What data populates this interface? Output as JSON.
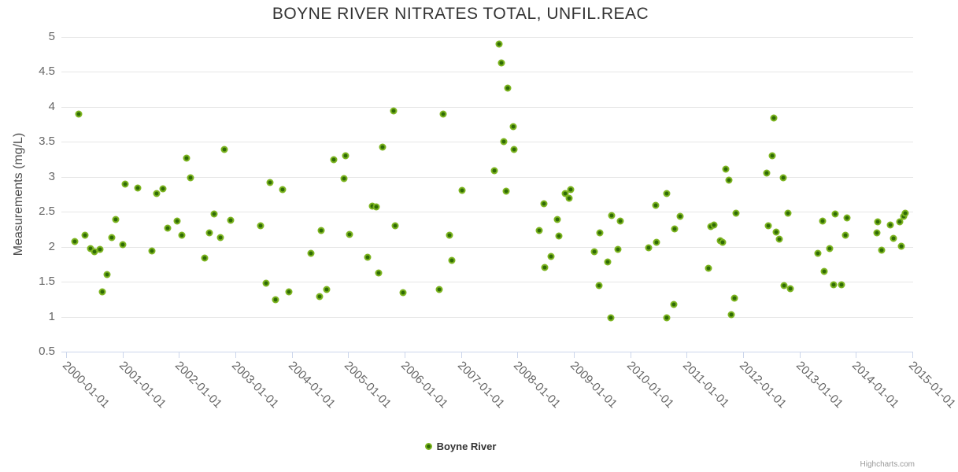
{
  "title": "BOYNE RIVER NITRATES TOTAL, UNFIL.REAC",
  "credits": "Highcharts.com",
  "colors": {
    "point_outer": "#7cb41f",
    "point_inner": "#2f6b05",
    "gridline": "#e6e6e6",
    "axis_line": "#ccd6eb",
    "title_text": "#333333",
    "axis_label_text": "#666666"
  },
  "legend": {
    "items": [
      {
        "label": "Boyne River",
        "marker": "circle-icon"
      }
    ]
  },
  "chart_data": {
    "type": "scatter",
    "title": "BOYNE RIVER NITRATES TOTAL, UNFIL.REAC",
    "xlabel": "",
    "ylabel": "Measurements (mg/L)",
    "ylim": [
      0.5,
      5
    ],
    "xlim": [
      "2000-01-01",
      "2015-01-01"
    ],
    "grid": true,
    "legend_position": "bottom-center",
    "ytick_labels": [
      "0.5",
      "1",
      "1.5",
      "2",
      "2.5",
      "3",
      "3.5",
      "4",
      "4.5",
      "5"
    ],
    "ytick_values": [
      0.5,
      1,
      1.5,
      2,
      2.5,
      3,
      3.5,
      4,
      4.5,
      5
    ],
    "xtick_labels": [
      "2000-01-01",
      "2001-01-01",
      "2002-01-01",
      "2003-01-01",
      "2004-01-01",
      "2005-01-01",
      "2006-01-01",
      "2007-01-01",
      "2008-01-01",
      "2009-01-01",
      "2010-01-01",
      "2011-01-01",
      "2012-01-01",
      "2013-01-01",
      "2014-01-01",
      "2015-01-01"
    ],
    "xtick_years": [
      2000,
      2001,
      2002,
      2003,
      2004,
      2005,
      2006,
      2007,
      2008,
      2009,
      2010,
      2011,
      2012,
      2013,
      2014,
      2015
    ],
    "series": [
      {
        "name": "Boyne River",
        "color": "#7cb41f",
        "points_x_decimal_year_y_mg_per_L": [
          [
            2000.16,
            2.08
          ],
          [
            2000.23,
            3.9
          ],
          [
            2000.33,
            2.17
          ],
          [
            2000.43,
            1.97
          ],
          [
            2000.5,
            1.93
          ],
          [
            2000.6,
            1.96
          ],
          [
            2000.64,
            1.36
          ],
          [
            2000.73,
            1.6
          ],
          [
            2000.81,
            2.13
          ],
          [
            2000.88,
            2.39
          ],
          [
            2001.0,
            2.03
          ],
          [
            2001.04,
            2.9
          ],
          [
            2001.27,
            2.84
          ],
          [
            2001.52,
            1.94
          ],
          [
            2001.6,
            2.76
          ],
          [
            2001.71,
            2.83
          ],
          [
            2001.8,
            2.27
          ],
          [
            2001.97,
            2.37
          ],
          [
            2002.05,
            2.17
          ],
          [
            2002.13,
            3.27
          ],
          [
            2002.21,
            2.99
          ],
          [
            2002.46,
            1.84
          ],
          [
            2002.54,
            2.2
          ],
          [
            2002.62,
            2.47
          ],
          [
            2002.73,
            2.13
          ],
          [
            2002.81,
            3.39
          ],
          [
            2002.91,
            2.38
          ],
          [
            2003.44,
            2.3
          ],
          [
            2003.55,
            1.48
          ],
          [
            2003.61,
            2.92
          ],
          [
            2003.71,
            1.24
          ],
          [
            2003.84,
            2.82
          ],
          [
            2003.95,
            1.35
          ],
          [
            2004.34,
            1.91
          ],
          [
            2004.49,
            1.29
          ],
          [
            2004.52,
            2.23
          ],
          [
            2004.62,
            1.39
          ],
          [
            2004.74,
            3.25
          ],
          [
            2004.93,
            2.97
          ],
          [
            2004.96,
            3.3
          ],
          [
            2005.02,
            2.18
          ],
          [
            2005.34,
            1.85
          ],
          [
            2005.43,
            2.58
          ],
          [
            2005.5,
            2.57
          ],
          [
            2005.54,
            1.62
          ],
          [
            2005.61,
            3.42
          ],
          [
            2005.81,
            3.94
          ],
          [
            2005.83,
            2.3
          ],
          [
            2005.97,
            1.34
          ],
          [
            2006.61,
            1.39
          ],
          [
            2006.69,
            3.9
          ],
          [
            2006.8,
            2.17
          ],
          [
            2006.84,
            1.81
          ],
          [
            2007.02,
            2.81
          ],
          [
            2007.59,
            3.09
          ],
          [
            2007.68,
            4.9
          ],
          [
            2007.71,
            4.63
          ],
          [
            2007.76,
            3.5
          ],
          [
            2007.8,
            2.79
          ],
          [
            2007.83,
            4.27
          ],
          [
            2007.93,
            3.72
          ],
          [
            2007.94,
            3.39
          ],
          [
            2008.39,
            2.23
          ],
          [
            2008.47,
            2.62
          ],
          [
            2008.49,
            1.7
          ],
          [
            2008.6,
            1.86
          ],
          [
            2008.7,
            2.39
          ],
          [
            2008.74,
            2.15
          ],
          [
            2008.84,
            2.76
          ],
          [
            2008.91,
            2.69
          ],
          [
            2008.94,
            2.82
          ],
          [
            2009.36,
            1.93
          ],
          [
            2009.44,
            1.44
          ],
          [
            2009.46,
            2.2
          ],
          [
            2009.6,
            1.78
          ],
          [
            2009.65,
            0.98
          ],
          [
            2009.67,
            2.45
          ],
          [
            2009.78,
            1.96
          ],
          [
            2009.82,
            2.37
          ],
          [
            2010.33,
            1.99
          ],
          [
            2010.45,
            2.59
          ],
          [
            2010.47,
            2.06
          ],
          [
            2010.64,
            2.76
          ],
          [
            2010.65,
            0.98
          ],
          [
            2010.77,
            1.17
          ],
          [
            2010.78,
            2.26
          ],
          [
            2010.88,
            2.44
          ],
          [
            2011.38,
            1.69
          ],
          [
            2011.43,
            2.29
          ],
          [
            2011.48,
            2.31
          ],
          [
            2011.59,
            2.09
          ],
          [
            2011.63,
            2.06
          ],
          [
            2011.69,
            3.11
          ],
          [
            2011.75,
            2.95
          ],
          [
            2011.79,
            1.03
          ],
          [
            2011.84,
            1.26
          ],
          [
            2011.87,
            2.48
          ],
          [
            2012.42,
            3.05
          ],
          [
            2012.44,
            2.3
          ],
          [
            2012.51,
            3.3
          ],
          [
            2012.54,
            3.84
          ],
          [
            2012.59,
            2.21
          ],
          [
            2012.64,
            2.11
          ],
          [
            2012.71,
            2.99
          ],
          [
            2012.73,
            1.44
          ],
          [
            2012.8,
            2.48
          ],
          [
            2012.84,
            1.4
          ],
          [
            2013.33,
            1.91
          ],
          [
            2013.41,
            2.37
          ],
          [
            2013.44,
            1.65
          ],
          [
            2013.53,
            1.97
          ],
          [
            2013.6,
            1.46
          ],
          [
            2013.63,
            2.47
          ],
          [
            2013.75,
            1.46
          ],
          [
            2013.82,
            2.16
          ],
          [
            2013.84,
            2.41
          ],
          [
            2014.37,
            2.2
          ],
          [
            2014.39,
            2.36
          ],
          [
            2014.45,
            1.95
          ],
          [
            2014.61,
            2.31
          ],
          [
            2014.66,
            2.12
          ],
          [
            2014.77,
            2.36
          ],
          [
            2014.81,
            2.01
          ],
          [
            2014.85,
            2.44
          ],
          [
            2014.88,
            2.48
          ]
        ]
      }
    ]
  }
}
